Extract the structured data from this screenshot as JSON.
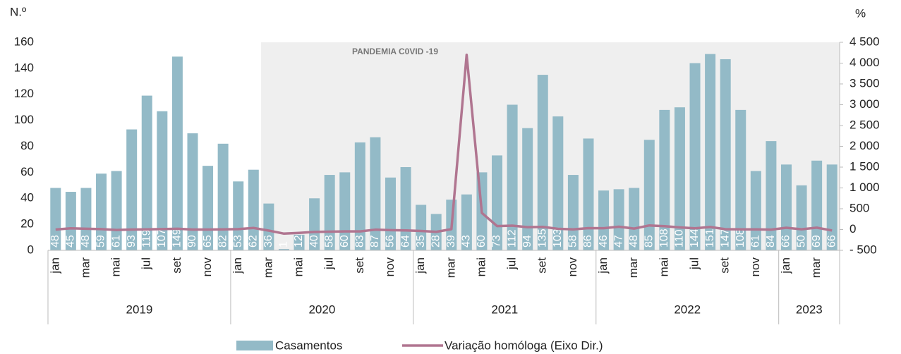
{
  "chart_data": {
    "type": "bar-line",
    "y_label": "N.º",
    "y2_label": "%",
    "annotation": "PANDEMIA C0VID -19",
    "categories": [
      "jan",
      null,
      "mar",
      null,
      "mai",
      null,
      "jul",
      null,
      "set",
      null,
      "nov",
      null,
      "jan",
      null,
      "mar",
      null,
      "mai",
      null,
      "jul",
      null,
      "set",
      null,
      "nov",
      null,
      "jan",
      null,
      "mar",
      null,
      "mai",
      null,
      "jul",
      null,
      "set",
      null,
      "nov",
      null,
      "jan",
      null,
      "mar",
      null,
      "mai",
      null,
      "jul",
      null,
      "set",
      null,
      "nov",
      null,
      "jan",
      null,
      "mar",
      null
    ],
    "years": [
      "2019",
      "2020",
      "2021",
      "2022",
      "2023"
    ],
    "series": [
      {
        "name": "Casamentos",
        "color": "#93bac7",
        "values": [
          48,
          45,
          48,
          59,
          61,
          93,
          119,
          107,
          149,
          90,
          65,
          82,
          53,
          62,
          36,
          1,
          12,
          40,
          58,
          60,
          83,
          87,
          56,
          64,
          35,
          28,
          39,
          43,
          60,
          73,
          112,
          94,
          135,
          103,
          58,
          86,
          46,
          47,
          48,
          85,
          108,
          110,
          144,
          151,
          147,
          108,
          61,
          84,
          66,
          50,
          69,
          66
        ]
      },
      {
        "name": "Variação homóloga (Eixo Dir.)",
        "color": "#b07590",
        "axis": "y2",
        "values": [
          0,
          30,
          20,
          10,
          -10,
          0,
          5,
          10,
          20,
          0,
          0,
          5,
          10,
          38,
          -25,
          -98,
          -80,
          -57,
          -51,
          -44,
          -44,
          -3,
          -14,
          -22,
          -34,
          -55,
          8,
          4200,
          400,
          83,
          93,
          57,
          63,
          18,
          4,
          34,
          31,
          68,
          23,
          98,
          80,
          51,
          29,
          61,
          9,
          5,
          5,
          -2,
          43,
          6,
          44,
          -22
        ]
      }
    ],
    "ylim": [
      0,
      160
    ],
    "yticks": [
      0,
      20,
      40,
      60,
      80,
      100,
      120,
      140,
      160
    ],
    "y2lim": [
      -500,
      4500
    ],
    "y2ticks": [
      {
        "value": -500,
        "label": "- 500"
      },
      0,
      500,
      {
        "value": 1000,
        "label": "1 000"
      },
      {
        "value": 1500,
        "label": "1 500"
      },
      {
        "value": 2000,
        "label": "2 000"
      },
      {
        "value": 2500,
        "label": "2 500"
      },
      {
        "value": 3000,
        "label": "3 000"
      },
      {
        "value": 3500,
        "label": "3 500"
      },
      {
        "value": 4000,
        "label": "4 000"
      },
      {
        "value": 4500,
        "label": "4 500"
      }
    ],
    "legend": "bottom"
  }
}
